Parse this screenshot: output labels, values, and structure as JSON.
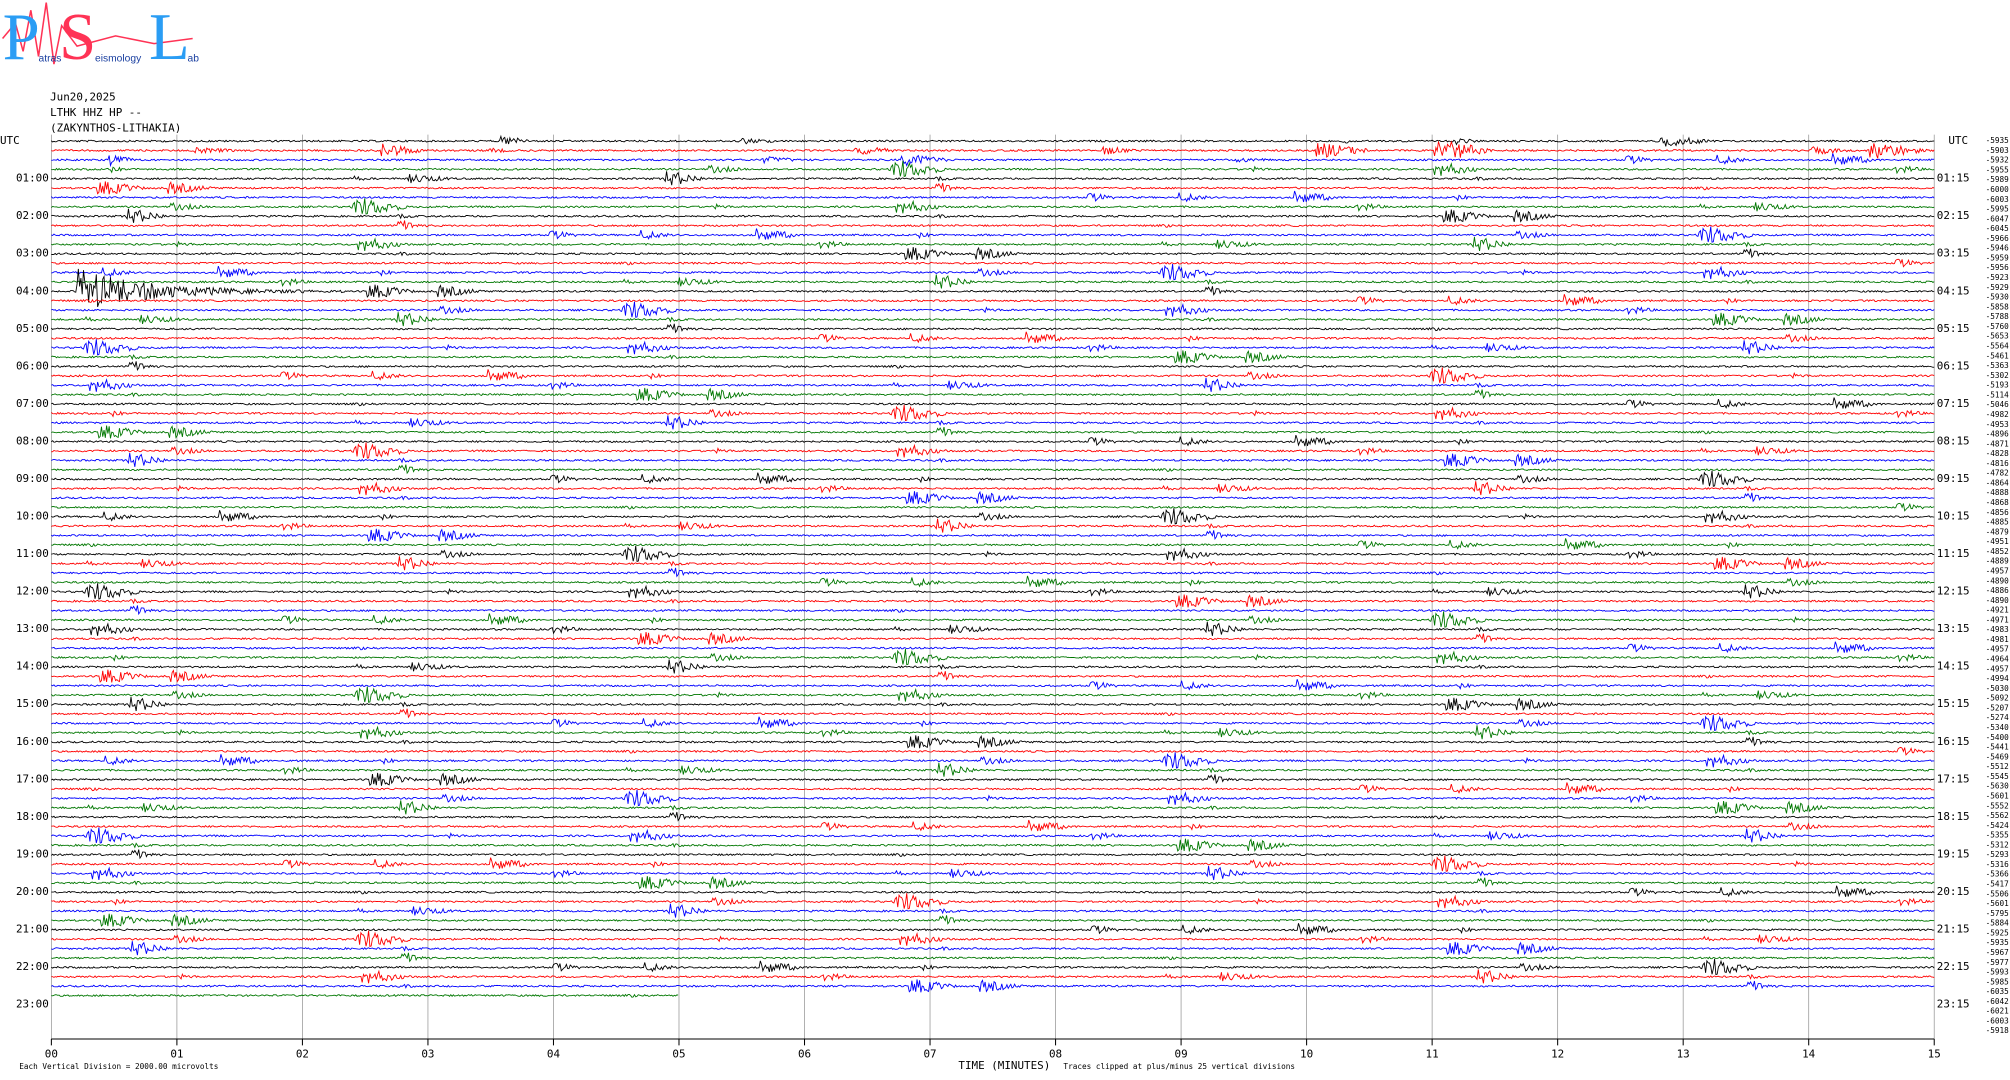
{
  "logo": {
    "letters": [
      "P",
      "S",
      "L"
    ],
    "words": [
      "atras",
      "eismology",
      "ab"
    ]
  },
  "header": {
    "date": "Jun20,2025",
    "station": "LTHK HHZ HP --",
    "location": "(ZAKYNTHOS-LITHAKIA)"
  },
  "left_labels": [
    "UTC",
    "01:00",
    "02:00",
    "03:00",
    "04:00",
    "05:00",
    "06:00",
    "07:00",
    "08:00",
    "09:00",
    "10:00",
    "11:00",
    "12:00",
    "13:00",
    "14:00",
    "15:00",
    "16:00",
    "17:00",
    "18:00",
    "19:00",
    "20:00",
    "21:00",
    "22:00",
    "23:00"
  ],
  "right_labels": [
    "UTC",
    "01:15",
    "02:15",
    "03:15",
    "04:15",
    "05:15",
    "06:15",
    "07:15",
    "08:15",
    "09:15",
    "10:15",
    "11:15",
    "12:15",
    "13:15",
    "14:15",
    "15:15",
    "16:15",
    "17:15",
    "18:15",
    "19:15",
    "20:15",
    "21:15",
    "22:15",
    "23:15"
  ],
  "trace_offsets": [
    "-5935",
    "-5903",
    "-5932",
    "-5955",
    "-5989",
    "-6000",
    "-6003",
    "-5995",
    "-6047",
    "-6045",
    "-5966",
    "-5946",
    "-5959",
    "-5956",
    "-5923",
    "-5929",
    "-5930",
    "-5858",
    "-5788",
    "-5760",
    "-5653",
    "-5564",
    "-5461",
    "-5363",
    "-5302",
    "-5193",
    "-5114",
    "-5046",
    "-4982",
    "-4953",
    "-4896",
    "-4871",
    "-4828",
    "-4816",
    "-4782",
    "-4864",
    "-4888",
    "-4868",
    "-4856",
    "-4885",
    "-4879",
    "-4951",
    "-4852",
    "-4889",
    "-4957",
    "-4890",
    "-4886",
    "-4890",
    "-4921",
    "-4971",
    "-4983",
    "-4981",
    "-4957",
    "-4964",
    "-4957",
    "-4994",
    "-5030",
    "-5092",
    "-5207",
    "-5274",
    "-5340",
    "-5400",
    "-5441",
    "-5469",
    "-5512",
    "-5545",
    "-5630",
    "-5601",
    "-5552",
    "-5562",
    "-5424",
    "-5355",
    "-5312",
    "-5293",
    "-5316",
    "-5366",
    "-5417",
    "-5506",
    "-5601",
    "-5795",
    "-5884",
    "-5925",
    "-5935",
    "-5967",
    "-5977",
    "-5993",
    "-5985",
    "-6035",
    "-6042",
    "-6021",
    "-6003",
    "-5918"
  ],
  "trace_colors": [
    "#000000",
    "#ff0000",
    "#0000ff",
    "#007700"
  ],
  "x_axis": {
    "labels": [
      "00",
      "01",
      "02",
      "03",
      "04",
      "05",
      "06",
      "07",
      "08",
      "09",
      "10",
      "11",
      "12",
      "13",
      "14",
      "15"
    ],
    "title": "TIME (MINUTES)"
  },
  "notes": {
    "clip": "Traces clipped at plus/minus 25 vertical divisions",
    "division": "Each Vertical Division = 2000.00 microvolts"
  }
}
